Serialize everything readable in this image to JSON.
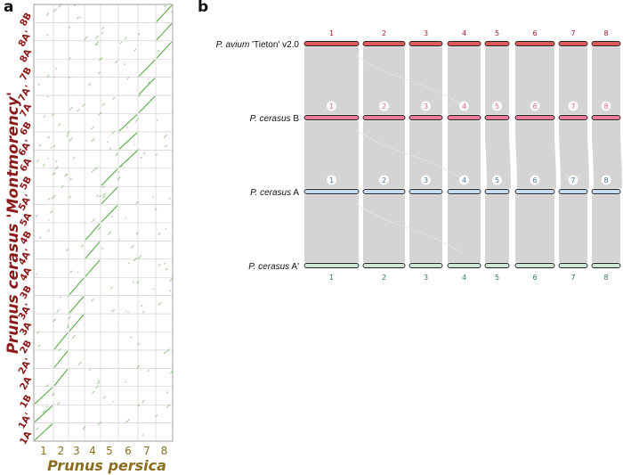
{
  "panel_a": {
    "label": "a",
    "y_axis_label": "Prunus cerasus 'Montmorency'",
    "x_axis_label": "Prunus persica",
    "y_ticks": [
      "8B",
      "8A'",
      "8A",
      "7B",
      "7A'",
      "7A",
      "6B",
      "6A'",
      "6A",
      "5B",
      "5A'",
      "5A",
      "4B",
      "4A'",
      "4A",
      "3B",
      "3A'",
      "3A",
      "2B",
      "2A'",
      "2A",
      "1B",
      "1A'",
      "1A"
    ],
    "x_ticks": [
      "1",
      "2",
      "3",
      "4",
      "5",
      "6",
      "7",
      "8"
    ]
  },
  "panel_b": {
    "label": "b",
    "tracks": [
      {
        "prefix": "P. avium",
        "suffix": " 'Tieton' v2.0",
        "color": "#e05a5a"
      },
      {
        "prefix": "P. cerasus",
        "suffix": " B",
        "color": "#e87c9a"
      },
      {
        "prefix": "P. cerasus",
        "suffix": " A",
        "color": "#c9dcef"
      },
      {
        "prefix": "P. cerasus",
        "suffix": " A'",
        "color": "#cfe6d6"
      }
    ],
    "chromosomes": [
      "1",
      "2",
      "3",
      "4",
      "5",
      "6",
      "7",
      "8"
    ]
  },
  "colors": {
    "dot_green": "#5aa84a",
    "label_red": "#8b1a1a",
    "label_gold": "#8b6d1e",
    "ribbon_gray": "#cdcdcd"
  }
}
